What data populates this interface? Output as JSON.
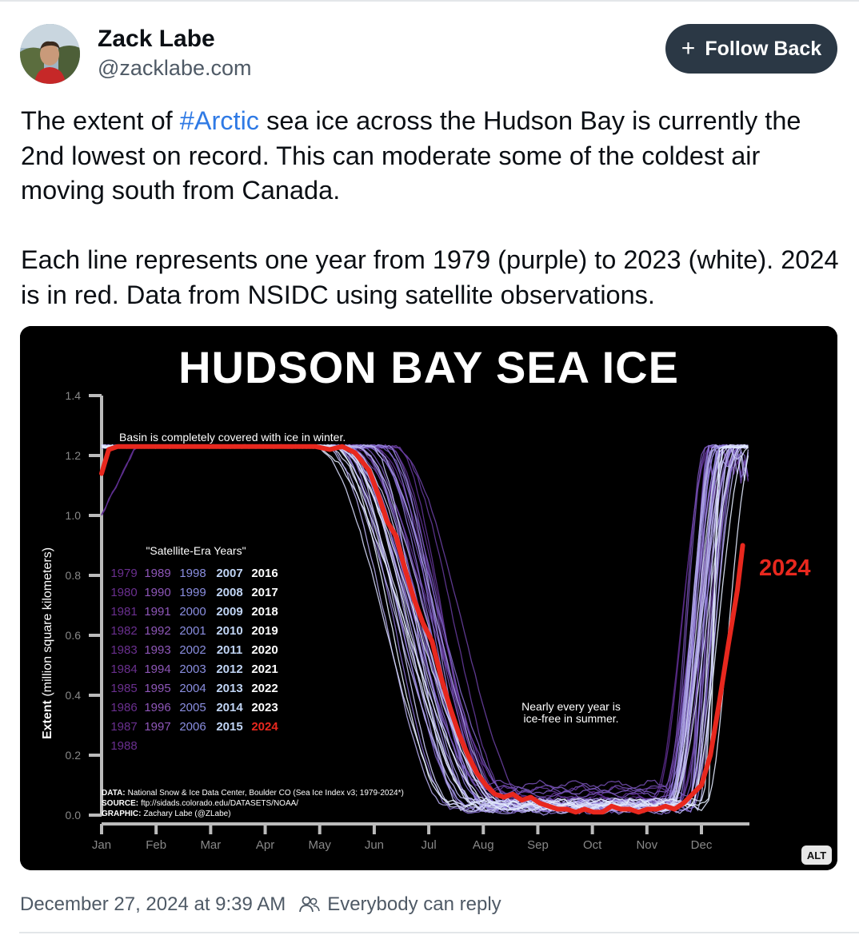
{
  "post": {
    "author": {
      "display_name": "Zack Labe",
      "handle": "@zacklabe.com"
    },
    "follow_button": {
      "label": "Follow Back",
      "icon": "plus-icon"
    },
    "text": {
      "line1_pre": "The extent of ",
      "hashtag": "#Arctic",
      "line1_post": " sea ice across the Hudson Bay is currently the 2nd lowest on record. This can moderate some of the coldest air moving south from Canada.\n\nEach line represents one year from 1979 (purple) to 2023 (white). 2024 is in red. Data from NSIDC using satellite observations."
    },
    "alt_badge": "ALT",
    "timestamp": "December 27, 2024 at 9:39 AM",
    "reply_setting": {
      "label": "Everybody can reply",
      "icon": "people-icon"
    },
    "colors": {
      "hashtag": "#2f7ae5",
      "follow_button": "#2b3845",
      "highlight_2024": "#e8281e",
      "text_secondary": "#4f5a66"
    }
  },
  "chart_data": {
    "type": "line",
    "title": "HUDSON BAY SEA ICE",
    "ylabel": "Extent (million square kilometers)",
    "xlabel": "",
    "ylim": [
      0,
      1.4
    ],
    "yticks": [
      "0.0",
      "0.2",
      "0.4",
      "0.6",
      "0.8",
      "1.0",
      "1.2",
      "1.4"
    ],
    "xticks": [
      "Jan",
      "Feb",
      "Mar",
      "Apr",
      "May",
      "Jun",
      "Jul",
      "Aug",
      "Sep",
      "Oct",
      "Nov",
      "Dec"
    ],
    "legend_title": "\"Satellite-Era Years\"",
    "legend_years": [
      [
        "1979",
        "1989",
        "1998",
        "2007",
        "2016"
      ],
      [
        "1980",
        "1990",
        "1999",
        "2008",
        "2017"
      ],
      [
        "1981",
        "1991",
        "2000",
        "2009",
        "2018"
      ],
      [
        "1982",
        "1992",
        "2001",
        "2010",
        "2019"
      ],
      [
        "1983",
        "1993",
        "2002",
        "2011",
        "2020"
      ],
      [
        "1984",
        "1994",
        "2003",
        "2012",
        "2021"
      ],
      [
        "1985",
        "1995",
        "2004",
        "2013",
        "2022"
      ],
      [
        "1986",
        "1996",
        "2005",
        "2014",
        "2023"
      ],
      [
        "1987",
        "1997",
        "2006",
        "2015",
        "2024"
      ],
      [
        "1988"
      ]
    ],
    "highlight_label": "2024",
    "annotations": {
      "winter": "Basin is completely covered with ice in winter.",
      "summer_line1": "Nearly every year is",
      "summer_line2": "ice-free in summer."
    },
    "credits": {
      "data_label": "DATA:",
      "data_text": "National Snow & Ice Data Center, Boulder CO (Sea Ice Index v3; 1979-2024*)",
      "source_label": "SOURCE:",
      "source_text": "ftp://sidads.colorado.edu/DATASETS/NOAA/",
      "graphic_label": "GRAPHIC:",
      "graphic_text": "Zachary Labe (@ZLabe)"
    },
    "highlight_series": {
      "name": "2024",
      "color": "#e8281e",
      "day": [
        1,
        5,
        10,
        20,
        40,
        60,
        80,
        100,
        110,
        120,
        128,
        135,
        142,
        150,
        155,
        160,
        165,
        170,
        175,
        180,
        185,
        190,
        195,
        200,
        205,
        210,
        215,
        220,
        225,
        230,
        235,
        240,
        245,
        250,
        255,
        260,
        265,
        270,
        275,
        280,
        285,
        290,
        295,
        300,
        305,
        310,
        315,
        320,
        325,
        330,
        335,
        340,
        345,
        350,
        355,
        358
      ],
      "value": [
        1.14,
        1.22,
        1.23,
        1.23,
        1.23,
        1.23,
        1.23,
        1.23,
        1.23,
        1.23,
        1.22,
        1.23,
        1.21,
        1.15,
        1.07,
        0.98,
        0.93,
        0.82,
        0.72,
        0.64,
        0.58,
        0.46,
        0.36,
        0.27,
        0.2,
        0.14,
        0.1,
        0.07,
        0.06,
        0.07,
        0.05,
        0.06,
        0.04,
        0.03,
        0.02,
        0.02,
        0.01,
        0.02,
        0.01,
        0.01,
        0.03,
        0.02,
        0.02,
        0.01,
        0.02,
        0.02,
        0.03,
        0.02,
        0.04,
        0.07,
        0.1,
        0.2,
        0.38,
        0.57,
        0.75,
        0.9
      ]
    }
  }
}
